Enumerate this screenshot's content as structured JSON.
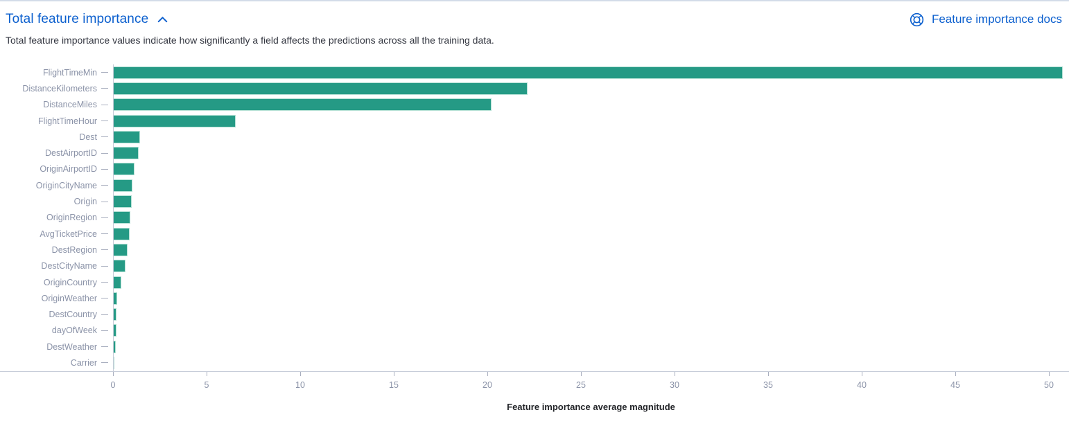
{
  "header": {
    "title": "Total feature importance",
    "collapse_icon": "chevron-up",
    "docs_link": {
      "label": "Feature importance docs",
      "icon": "lifebuoy"
    }
  },
  "description": "Total feature importance values indicate how significantly a field affects the predictions across all the training data.",
  "colors": {
    "bar": "#259a85",
    "bar_border": "#b3e0d4",
    "link": "#0b5fce",
    "axis_label": "#8b93a8",
    "axis_line": "#c6ccd8",
    "tick": "#a9afbf",
    "text": "#343741",
    "axis_title": "#222428",
    "divider": "#d3dce8"
  },
  "chart_data": {
    "type": "bar",
    "orientation": "horizontal",
    "title": "Total feature importance",
    "xlabel": "Feature importance average magnitude",
    "ylabel": "",
    "categories": [
      "FlightTimeMin",
      "DistanceKilometers",
      "DistanceMiles",
      "FlightTimeHour",
      "Dest",
      "DestAirportID",
      "OriginAirportID",
      "OriginCityName",
      "Origin",
      "OriginRegion",
      "AvgTicketPrice",
      "DestRegion",
      "DestCityName",
      "OriginCountry",
      "OriginWeather",
      "DestCountry",
      "dayOfWeek",
      "DestWeather",
      "Carrier"
    ],
    "values": [
      50.7,
      22.1,
      20.2,
      6.5,
      1.4,
      1.35,
      1.1,
      1.0,
      0.95,
      0.9,
      0.85,
      0.73,
      0.62,
      0.4,
      0.19,
      0.16,
      0.15,
      0.1,
      0.04
    ],
    "x_ticks": [
      0,
      5,
      10,
      15,
      20,
      25,
      30,
      35,
      40,
      45,
      50
    ],
    "xlim": [
      0,
      51
    ],
    "grid": false,
    "legend": false,
    "bar_color": "#259a85"
  }
}
